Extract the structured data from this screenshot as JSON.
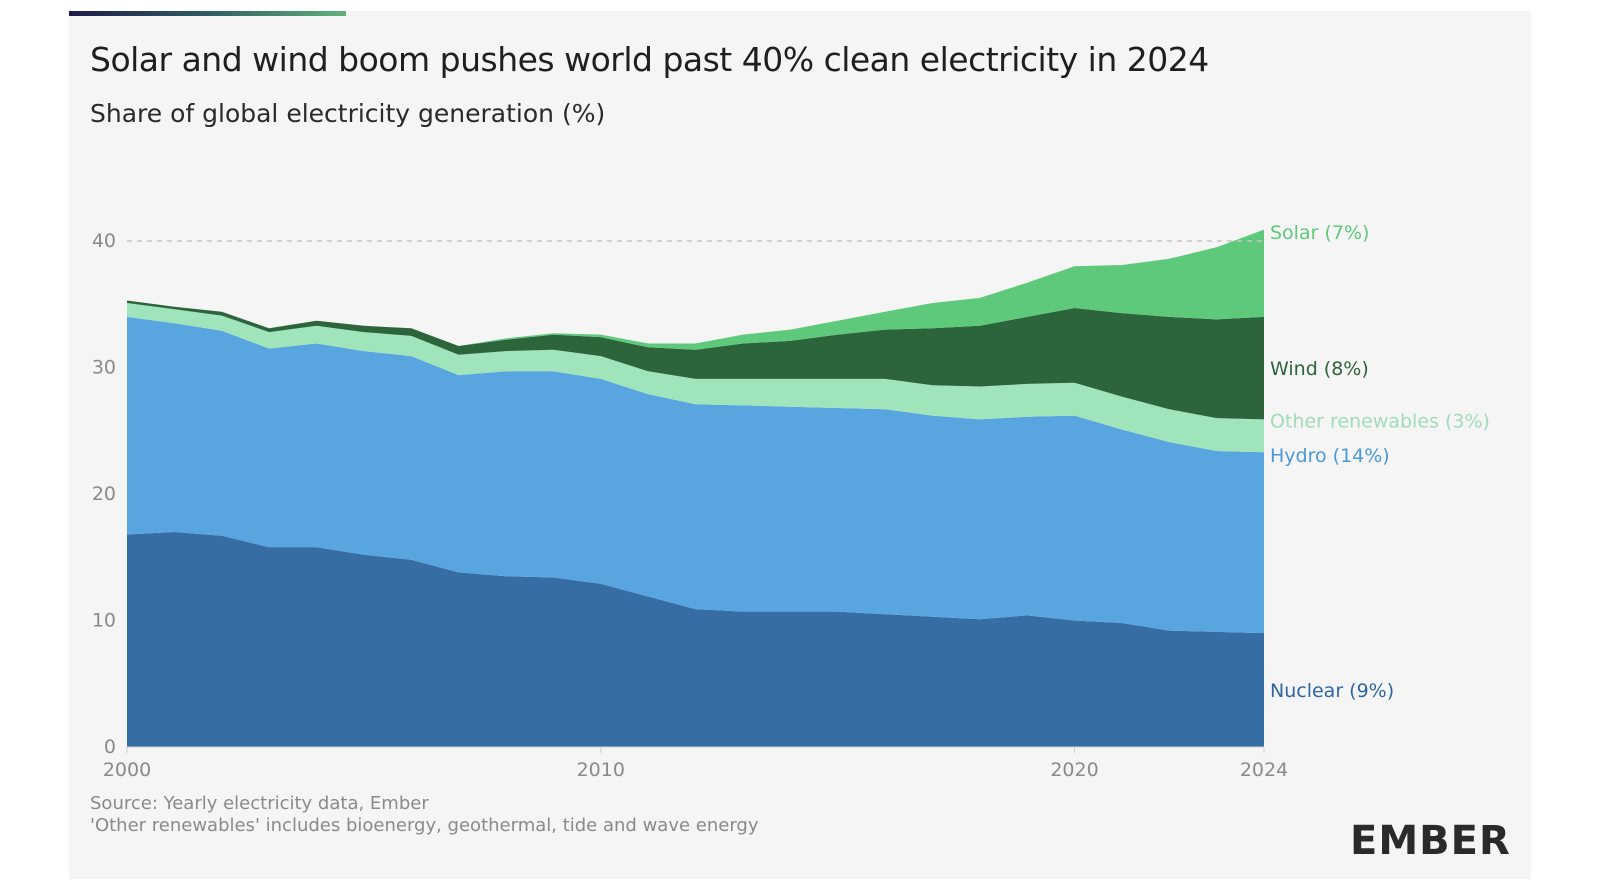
{
  "header": {
    "title": "Solar and wind boom pushes world past 40% clean electricity in 2024",
    "subtitle": "Share of global electricity generation (%)"
  },
  "footer": {
    "source": "Source: Yearly electricity data, Ember",
    "note": "'Other renewables' includes bioenergy, geothermal, tide and wave energy",
    "logo": "EMBER"
  },
  "chart_data": {
    "type": "area",
    "stacked": true,
    "x": [
      2000,
      2001,
      2002,
      2003,
      2004,
      2005,
      2006,
      2007,
      2008,
      2009,
      2010,
      2011,
      2012,
      2013,
      2014,
      2015,
      2016,
      2017,
      2018,
      2019,
      2020,
      2021,
      2022,
      2023,
      2024
    ],
    "xticks": [
      2000,
      2010,
      2020,
      2024
    ],
    "yticks": [
      0,
      10,
      20,
      30,
      40
    ],
    "xlim": [
      2000,
      2024
    ],
    "ylim": [
      0,
      44
    ],
    "reference_line": {
      "y": 40,
      "style": "dashed"
    },
    "series": [
      {
        "name": "Nuclear (9%)",
        "color": "#376da5",
        "values": [
          16.8,
          17.0,
          16.7,
          15.8,
          15.8,
          15.2,
          14.8,
          13.8,
          13.5,
          13.4,
          12.9,
          11.9,
          10.9,
          10.7,
          10.7,
          10.7,
          10.5,
          10.3,
          10.1,
          10.4,
          10.0,
          9.8,
          9.2,
          9.1,
          9.0
        ]
      },
      {
        "name": "Hydro (14%)",
        "color": "#58a5e0",
        "values": [
          17.2,
          16.5,
          16.2,
          15.7,
          16.1,
          16.1,
          16.1,
          15.6,
          16.2,
          16.3,
          16.2,
          16.0,
          16.2,
          16.3,
          16.2,
          16.1,
          16.2,
          15.9,
          15.8,
          15.7,
          16.2,
          15.3,
          14.9,
          14.3,
          14.3
        ]
      },
      {
        "name": "Other renewables (3%)",
        "color": "#a0e4bc",
        "values": [
          1.1,
          1.1,
          1.2,
          1.3,
          1.4,
          1.5,
          1.6,
          1.6,
          1.6,
          1.7,
          1.8,
          1.8,
          2.0,
          2.1,
          2.2,
          2.3,
          2.4,
          2.4,
          2.6,
          2.6,
          2.6,
          2.6,
          2.6,
          2.6,
          2.6
        ]
      },
      {
        "name": "Wind (8%)",
        "color": "#2c643c",
        "values": [
          0.2,
          0.2,
          0.3,
          0.3,
          0.4,
          0.5,
          0.6,
          0.7,
          0.9,
          1.2,
          1.5,
          1.9,
          2.3,
          2.8,
          3.0,
          3.5,
          3.9,
          4.5,
          4.8,
          5.3,
          5.9,
          6.6,
          7.3,
          7.8,
          8.1
        ]
      },
      {
        "name": "Solar (7%)",
        "color": "#5fc97b",
        "values": [
          0.0,
          0.0,
          0.0,
          0.0,
          0.0,
          0.0,
          0.0,
          0.0,
          0.1,
          0.1,
          0.2,
          0.3,
          0.5,
          0.7,
          0.9,
          1.1,
          1.4,
          2.0,
          2.2,
          2.7,
          3.3,
          3.8,
          4.6,
          5.7,
          6.9
        ]
      }
    ]
  }
}
